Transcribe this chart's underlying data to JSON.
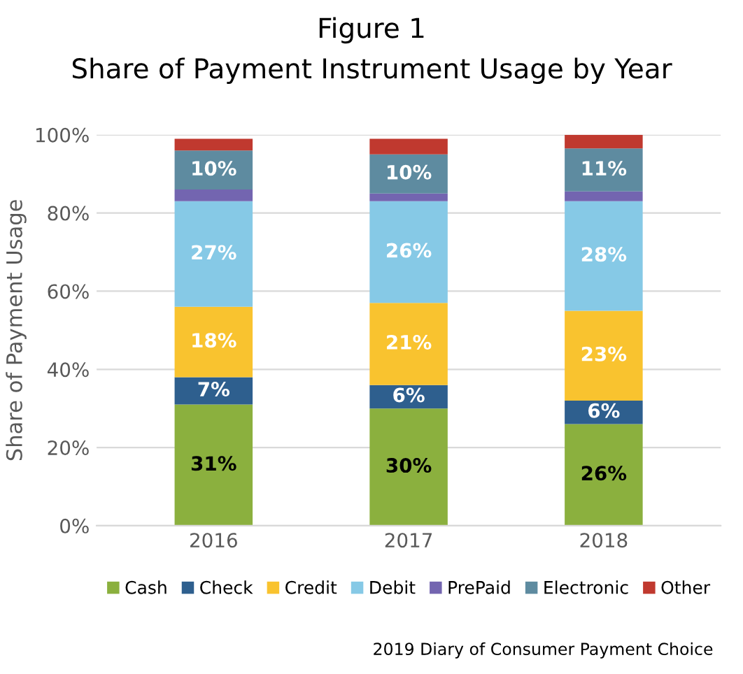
{
  "chart_data": {
    "type": "bar",
    "stacked": true,
    "title": "Figure 1",
    "subtitle": "Share of Payment Instrument Usage by Year",
    "ylabel": "Share of Payment Usage",
    "categories": [
      "2016",
      "2017",
      "2018"
    ],
    "series": [
      {
        "name": "Cash",
        "color": "#8bb03e",
        "values": [
          31,
          30,
          26
        ],
        "value_labels": [
          "31%",
          "30%",
          "26%"
        ]
      },
      {
        "name": "Check",
        "color": "#2e5f8e",
        "values": [
          7,
          6,
          6
        ],
        "value_labels": [
          "7%",
          "6%",
          "6%"
        ]
      },
      {
        "name": "Credit",
        "color": "#f9c32f",
        "values": [
          18,
          21,
          23
        ],
        "value_labels": [
          "18%",
          "21%",
          "23%"
        ]
      },
      {
        "name": "Debit",
        "color": "#86c9e6",
        "values": [
          27,
          26,
          28
        ],
        "value_labels": [
          "27%",
          "26%",
          "28%"
        ]
      },
      {
        "name": "PrePaid",
        "color": "#7365b0",
        "values": [
          3,
          2,
          2.5
        ]
      },
      {
        "name": "Electronic",
        "color": "#5e8ba0",
        "values": [
          10,
          10,
          11
        ],
        "value_labels": [
          "10%",
          "10%",
          "11%"
        ]
      },
      {
        "name": "Other",
        "color": "#c0392f",
        "values": [
          3,
          4,
          3.5
        ]
      }
    ],
    "ylim": [
      0,
      100
    ],
    "yticks": [
      {
        "value": 0,
        "label": "0%"
      },
      {
        "value": 20,
        "label": "20%"
      },
      {
        "value": 40,
        "label": "40%"
      },
      {
        "value": 60,
        "label": "60%"
      },
      {
        "value": 80,
        "label": "80%"
      },
      {
        "value": 100,
        "label": "100%"
      }
    ],
    "grid": "y",
    "legend": "bottom",
    "annotations": [
      "2019 Diary of Consumer Payment Choice"
    ]
  }
}
